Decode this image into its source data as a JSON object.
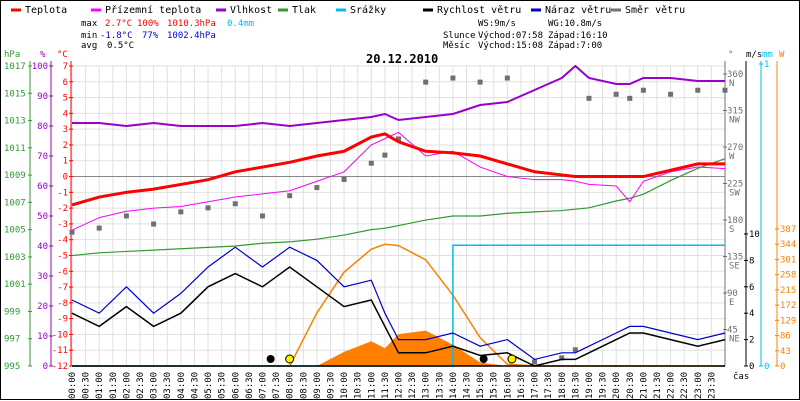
{
  "chart_data": {
    "type": "line",
    "title": "20.12.2010",
    "legend": [
      {
        "label": "Teplota",
        "color": "#ff0000"
      },
      {
        "label": "Přízemní teplota",
        "color": "#ff00ff"
      },
      {
        "label": "Vlhkost",
        "color": "#9900cc"
      },
      {
        "label": "Tlak",
        "color": "#339933"
      },
      {
        "label": "Srážky",
        "color": "#00bbee"
      },
      {
        "label": "Rychlost větru",
        "color": "#000000"
      },
      {
        "label": "Náraz větru",
        "color": "#0000cc"
      },
      {
        "label": "Směr větru",
        "color": "#707070"
      }
    ],
    "stats": {
      "max_label": "max",
      "min_label": "min",
      "avg_label": "avg",
      "max_temp": "2.7°C",
      "max_hum": "100%",
      "max_press": "1010.3hPa",
      "max_rain": "0.4mm",
      "min_temp": "-1.8°C",
      "min_hum": "77%",
      "min_press": "1002.4hPa",
      "avg_temp": "0.5°C",
      "ws": "WS:9m/s",
      "wg": "WG:10.8m/s",
      "sun_label": "Slunce",
      "sun_rise": "Východ:07:58",
      "sun_set": "Západ:16:10",
      "moon_label": "Měsíc",
      "moon_rise": "Východ:15:08",
      "moon_set": "Západ:7:00"
    },
    "axes": {
      "hpa": {
        "unit": "hPa",
        "ticks": [
          995,
          997,
          999,
          1001,
          1003,
          1005,
          1007,
          1009,
          1011,
          1013,
          1015,
          1017
        ],
        "range": [
          995,
          1017
        ]
      },
      "pct": {
        "unit": "%",
        "ticks": [
          0,
          10,
          20,
          30,
          40,
          50,
          60,
          70,
          80,
          90,
          100
        ],
        "range": [
          0,
          100
        ]
      },
      "temp": {
        "unit": "°C",
        "ticks": [
          -12,
          -11,
          -10,
          -9,
          -8,
          -7,
          -6,
          -5,
          -4,
          -3,
          -2,
          -1,
          0,
          1,
          2,
          3,
          4,
          5,
          6,
          7
        ],
        "range": [
          -12,
          7
        ]
      },
      "dir": {
        "unit": "°",
        "ticks": [
          [
            "45",
            "NE"
          ],
          [
            "90",
            "E"
          ],
          [
            "135",
            "SE"
          ],
          [
            "180",
            "S"
          ],
          [
            "225",
            "SW"
          ],
          [
            "270",
            "W"
          ],
          [
            "315",
            "NW"
          ],
          [
            "360",
            "N"
          ]
        ],
        "range": [
          0,
          360
        ]
      },
      "wind": {
        "unit": "m/s",
        "ticks": [
          0,
          2,
          4,
          6,
          8,
          10
        ],
        "range": [
          0,
          10
        ]
      },
      "rain": {
        "unit": "mm",
        "ticks": [
          0,
          1
        ],
        "range": [
          0,
          1
        ]
      },
      "solar": {
        "unit": "W",
        "ticks": [
          0,
          43,
          86,
          129,
          172,
          215,
          258,
          301,
          344,
          387
        ],
        "range": [
          0,
          387
        ]
      },
      "time_label": "čas",
      "x_ticks": [
        "00:00",
        "00:30",
        "01:00",
        "01:30",
        "02:00",
        "02:30",
        "03:00",
        "03:30",
        "04:00",
        "04:30",
        "05:00",
        "05:30",
        "06:00",
        "06:30",
        "07:00",
        "07:30",
        "08:00",
        "08:30",
        "09:00",
        "09:30",
        "10:00",
        "10:30",
        "11:00",
        "11:30",
        "12:00",
        "12:30",
        "13:00",
        "13:30",
        "14:00",
        "14:30",
        "15:00",
        "15:30",
        "16:00",
        "16:30",
        "17:00",
        "17:30",
        "18:00",
        "18:30",
        "19:00",
        "19:30",
        "20:00",
        "20:30",
        "21:00",
        "21:30",
        "22:00",
        "22:30",
        "23:00",
        "23:30"
      ]
    },
    "hours": [
      0,
      1,
      2,
      3,
      4,
      5,
      6,
      7,
      8,
      9,
      10,
      11,
      11.5,
      12,
      13,
      14,
      15,
      16,
      17,
      18,
      18.5,
      19,
      20,
      20.5,
      21,
      22,
      23,
      24
    ],
    "series": {
      "temperature": [
        -1.8,
        -1.3,
        -1.0,
        -0.8,
        -0.5,
        -0.2,
        0.3,
        0.6,
        0.9,
        1.3,
        1.6,
        2.5,
        2.7,
        2.2,
        1.6,
        1.5,
        1.3,
        0.8,
        0.3,
        0.1,
        0.0,
        0.0,
        0.0,
        0.0,
        0.0,
        0.4,
        0.8,
        0.8
      ],
      "apparent_temperature": [
        -3.4,
        -2.6,
        -2.2,
        -2.0,
        -1.9,
        -1.6,
        -1.3,
        -1.1,
        -0.9,
        -0.3,
        0.3,
        2.0,
        2.4,
        2.8,
        1.3,
        1.6,
        0.6,
        0.0,
        -0.2,
        -0.2,
        -0.3,
        -0.5,
        -0.6,
        -1.6,
        -0.3,
        0.3,
        0.6,
        0.5
      ],
      "humidity": [
        81,
        81,
        80,
        81,
        80,
        80,
        80,
        81,
        80,
        81,
        82,
        83,
        84,
        82,
        83,
        84,
        87,
        88,
        92,
        96,
        100,
        96,
        94,
        94,
        96,
        96,
        95,
        95
      ],
      "pressure": [
        1003.1,
        1003.3,
        1003.4,
        1003.5,
        1003.6,
        1003.7,
        1003.8,
        1004.0,
        1004.1,
        1004.3,
        1004.6,
        1005.0,
        1005.1,
        1005.3,
        1005.7,
        1006.0,
        1006.0,
        1006.2,
        1006.3,
        1006.4,
        1006.5,
        1006.6,
        1007.1,
        1007.3,
        1007.6,
        1008.6,
        1009.5,
        1010.2
      ],
      "wind_speed": [
        4,
        3,
        4.5,
        3,
        4,
        6,
        7,
        6,
        7.5,
        6,
        4.5,
        5,
        3,
        1,
        1,
        1.5,
        0.8,
        1,
        0,
        0.5,
        0.5,
        1,
        2,
        2.5,
        2.5,
        2,
        1.5,
        2
      ],
      "wind_gust": [
        5,
        4,
        6,
        4,
        5.5,
        7.5,
        9,
        7.5,
        9,
        8,
        6,
        6.5,
        4,
        2,
        2,
        2.5,
        1.5,
        2,
        0.5,
        1,
        1,
        1.5,
        2.5,
        3,
        3,
        2.5,
        2,
        2.5
      ],
      "wind_direction": [
        165,
        170,
        185,
        175,
        190,
        195,
        200,
        185,
        210,
        220,
        230,
        250,
        260,
        280,
        350,
        355,
        350,
        355,
        5,
        10,
        20,
        330,
        335,
        330,
        340,
        335,
        340,
        340
      ],
      "rain_mm": [
        0,
        0,
        0,
        0,
        0,
        0,
        0,
        0,
        0,
        0,
        0,
        0,
        0,
        0,
        0,
        0.4,
        0.4,
        0.4,
        0.4,
        0.4,
        0.4,
        0.4,
        0.4,
        0.4,
        0.4,
        0.4,
        0.4,
        0.4
      ],
      "solar_theoretical": [
        0,
        0,
        0,
        0,
        0,
        0,
        0,
        0,
        0,
        150,
        265,
        330,
        344,
        340,
        300,
        200,
        80,
        5,
        0,
        0,
        0,
        0,
        0,
        0,
        0,
        0,
        0,
        0
      ],
      "solar_actual": [
        0,
        0,
        0,
        0,
        0,
        0,
        0,
        0,
        0,
        0,
        40,
        70,
        50,
        90,
        100,
        60,
        10,
        0,
        0,
        0,
        0,
        0,
        0,
        0,
        0,
        0,
        0,
        0
      ]
    },
    "colors": {
      "solar": "#ff8000",
      "grid": "#e0e0e0",
      "sun": "#ffee00"
    }
  }
}
